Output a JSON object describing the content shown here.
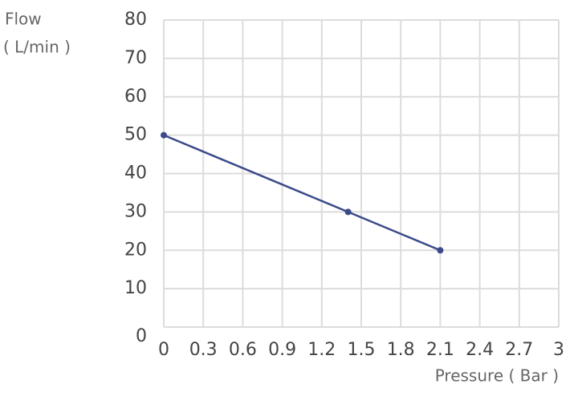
{
  "chart_data": {
    "type": "line",
    "ylabel": "Flow",
    "yunit": "( L/min )",
    "xlabel": "Pressure ( Bar )",
    "x": [
      0,
      1.4,
      2.1
    ],
    "series": [
      {
        "name": "Flow",
        "color": "#3b4a8a",
        "values": [
          50,
          30,
          20
        ]
      }
    ],
    "xlim": [
      0,
      3
    ],
    "xticks": [
      0,
      0.3,
      0.6,
      0.9,
      1.2,
      1.5,
      1.8,
      2.1,
      2.4,
      2.7,
      3
    ],
    "ylim": [
      0,
      80
    ],
    "yticks": [
      0,
      10,
      20,
      30,
      40,
      50,
      60,
      70,
      80
    ],
    "grid": true
  }
}
